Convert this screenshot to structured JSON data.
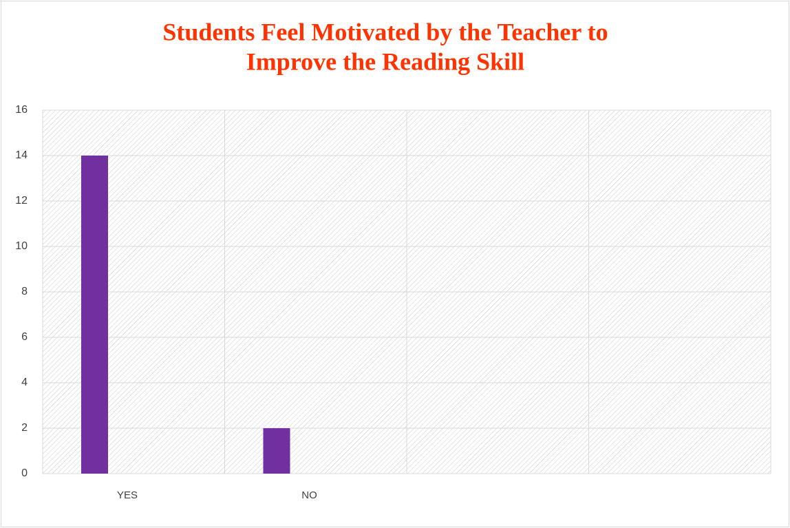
{
  "chart_data": {
    "type": "bar",
    "title": [
      "Students Feel Motivated by the Teacher to",
      "Improve the Reading Skill"
    ],
    "categories": [
      "YES",
      "NO",
      null,
      null
    ],
    "values": [
      14,
      2,
      null,
      null
    ],
    "color": "#7030a0",
    "title_color": "#ff3300",
    "ylim": [
      0,
      16
    ],
    "yticks": [
      0,
      2,
      4,
      6,
      8,
      10,
      12,
      14,
      16
    ],
    "grid": true
  }
}
